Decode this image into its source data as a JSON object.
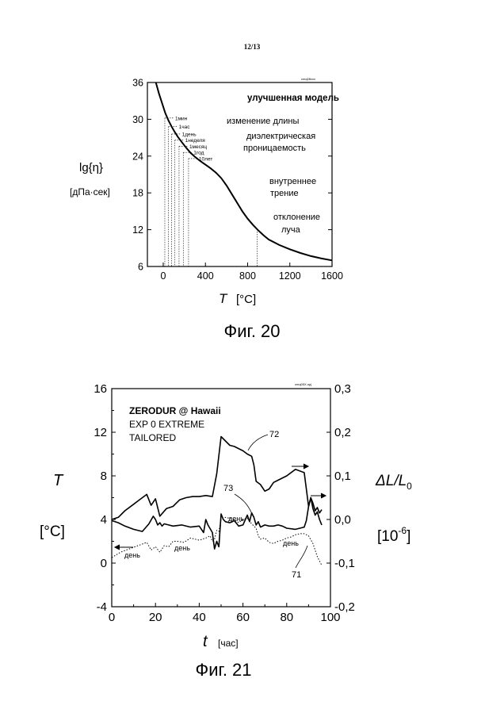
{
  "page_number": "12/13",
  "chart_data": [
    {
      "type": "line",
      "caption": "Фиг. 20",
      "stamp": "cmq08xxx",
      "ylabel_main": "lg{η}",
      "ylabel_unit": "[дПа·сек]",
      "xlabel_symbol": "T",
      "xlabel_unit": "[°C]",
      "xlim": [
        -150,
        1600
      ],
      "ylim": [
        6,
        36
      ],
      "x_ticks": [
        0,
        400,
        800,
        1200,
        1600
      ],
      "y_ticks": [
        6,
        12,
        18,
        24,
        30,
        36
      ],
      "series": [
        {
          "x": [
            -70,
            -40,
            -10,
            20,
            50,
            80,
            110,
            140,
            180,
            220,
            260,
            300,
            350,
            400,
            450,
            500,
            550,
            600,
            650,
            700,
            750,
            800,
            850,
            900,
            950,
            1000,
            1100,
            1200,
            1300,
            1400,
            1500,
            1600
          ],
          "y": [
            36,
            34.2,
            32.6,
            31.0,
            29.8,
            28.8,
            27.9,
            27.1,
            26.2,
            25.3,
            24.5,
            23.9,
            23.2,
            22.6,
            22.0,
            21.3,
            20.4,
            19.2,
            17.8,
            16.4,
            15.0,
            13.8,
            12.8,
            11.9,
            11.1,
            10.4,
            9.5,
            8.8,
            8.2,
            7.7,
            7.3,
            7.0
          ]
        }
      ],
      "time_markers": [
        {
          "label": "1мин",
          "x": 15,
          "y": 30.2
        },
        {
          "label": "1час",
          "x": 50,
          "y": 28.8
        },
        {
          "label": "1день",
          "x": 80,
          "y": 27.6
        },
        {
          "label": "1неделя",
          "x": 110,
          "y": 26.6
        },
        {
          "label": "1месяц",
          "x": 150,
          "y": 25.6
        },
        {
          "label": "1год",
          "x": 190,
          "y": 24.6
        },
        {
          "label": "10лет",
          "x": 240,
          "y": 23.6
        }
      ],
      "beam_marker_x": 890,
      "annotations": [
        {
          "text": "улучшенная модель",
          "bold": true
        },
        {
          "text": "изменение длины"
        },
        {
          "text": "диэлектрическая"
        },
        {
          "text": "проницаемость"
        },
        {
          "text": "внутреннее"
        },
        {
          "text": "трение"
        },
        {
          "text": "отклонение"
        },
        {
          "text": "луча"
        }
      ]
    },
    {
      "type": "line",
      "caption": "Фиг. 21",
      "stamp": "cmq05X.opj",
      "title_lines": [
        "ZERODUR @ Hawaii",
        "EXP 0 EXTREME",
        "TAILORED"
      ],
      "ylabel_left": "T",
      "ylabel_left_unit": "[°C]",
      "ylabel_right": "ΔL/L",
      "ylabel_right_sub": "0",
      "ylabel_right_unit": "[10",
      "ylabel_right_unit_exp": "-6",
      "ylabel_right_unit_close": "]",
      "xlabel_symbol": "t",
      "xlabel_unit": "[час]",
      "xlim": [
        0,
        100
      ],
      "ylim": [
        -4,
        16
      ],
      "y2lim": [
        -0.2,
        0.3
      ],
      "x_ticks": [
        "0",
        "20",
        "40",
        "60",
        "80",
        "100"
      ],
      "y_ticks": [
        "-4",
        "0",
        "4",
        "8",
        "12",
        "16"
      ],
      "y2_ticks": [
        "-0,2",
        "-0,1",
        "0,0",
        "0,1",
        "0,2",
        "0,3"
      ],
      "series": [
        {
          "name": "72",
          "style": "solid",
          "x": [
            0,
            3,
            6,
            10,
            14,
            16,
            18,
            20,
            22,
            25,
            28,
            31,
            34,
            37,
            40,
            43,
            46,
            48,
            50,
            52,
            54,
            56,
            58,
            60,
            62,
            64,
            65,
            66,
            68,
            70,
            72,
            74,
            76,
            80,
            84,
            88,
            90,
            91,
            92,
            93,
            94,
            95,
            96
          ],
          "y": [
            4.0,
            4.2,
            4.8,
            5.4,
            6.0,
            6.3,
            5.3,
            5.9,
            4.3,
            5.0,
            5.2,
            5.8,
            6.0,
            6.1,
            6.1,
            6.2,
            6.1,
            8.2,
            11.6,
            11.2,
            10.8,
            10.7,
            10.5,
            10.3,
            10.0,
            9.8,
            9.0,
            7.5,
            7.2,
            6.6,
            6.8,
            7.4,
            7.6,
            8.0,
            8.6,
            8.3,
            5.2,
            6.0,
            5.5,
            4.8,
            5.1,
            4.6,
            4.9
          ]
        },
        {
          "name": "73",
          "style": "solid",
          "x": [
            0,
            3,
            6,
            10,
            14,
            17,
            19,
            20,
            21,
            22,
            23,
            24,
            26,
            28,
            32,
            36,
            40,
            42,
            43,
            44,
            46,
            47,
            48,
            49,
            50,
            51,
            52,
            54,
            56,
            58,
            60,
            62,
            63,
            64,
            65,
            66,
            67,
            68,
            70,
            72,
            74,
            76,
            78,
            80,
            84,
            86,
            88,
            89,
            90,
            91,
            92,
            93,
            94,
            95,
            96
          ],
          "y": [
            3.9,
            3.7,
            3.4,
            3.1,
            2.9,
            3.6,
            4.3,
            4.0,
            3.5,
            3.7,
            3.4,
            3.6,
            3.5,
            3.4,
            3.5,
            3.3,
            3.4,
            2.8,
            4.0,
            3.5,
            2.8,
            1.3,
            2.0,
            1.5,
            4.5,
            4.0,
            3.8,
            3.7,
            3.9,
            3.4,
            3.5,
            4.4,
            3.8,
            4.6,
            4.2,
            3.5,
            3.8,
            3.3,
            3.5,
            3.4,
            3.4,
            3.5,
            3.4,
            3.2,
            3.1,
            3.2,
            3.3,
            3.9,
            5.2,
            6.0,
            5.0,
            4.4,
            4.7,
            4.0,
            3.5
          ]
        },
        {
          "name": "71",
          "style": "dotted",
          "x": [
            0,
            4,
            8,
            12,
            16,
            18,
            20,
            22,
            24,
            26,
            28,
            30,
            33,
            36,
            40,
            43,
            45,
            46,
            47,
            48,
            49,
            50,
            52,
            54,
            56,
            58,
            60,
            62,
            64,
            66,
            67,
            68,
            70,
            72,
            74,
            76,
            78,
            80,
            82,
            84,
            86,
            88,
            90,
            92,
            94,
            96
          ],
          "y": [
            0.5,
            1.0,
            1.3,
            1.6,
            1.9,
            1.2,
            1.5,
            1.0,
            1.6,
            1.5,
            2.0,
            2.0,
            1.9,
            2.3,
            2.1,
            2.3,
            2.5,
            2.0,
            2.2,
            3.0,
            2.9,
            4.0,
            4.2,
            4.1,
            4.0,
            3.7,
            4.0,
            4.1,
            3.6,
            3.2,
            2.5,
            2.2,
            2.3,
            1.9,
            1.8,
            2.0,
            2.1,
            2.3,
            2.4,
            2.6,
            2.7,
            2.7,
            2.5,
            1.8,
            0.6,
            -0.2
          ]
        }
      ],
      "day_labels": [
        "день",
        "день",
        "день",
        "день"
      ]
    }
  ]
}
